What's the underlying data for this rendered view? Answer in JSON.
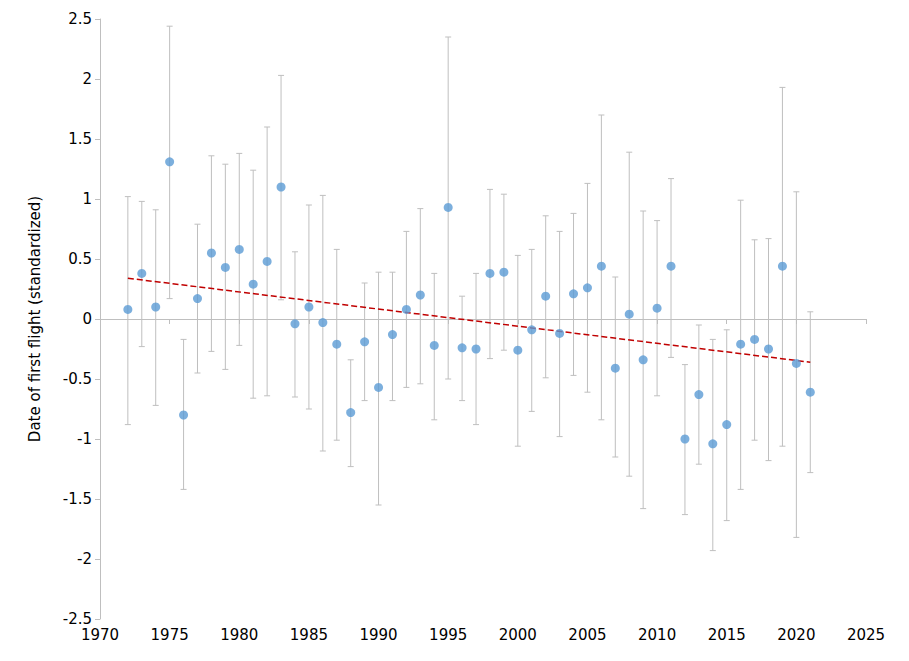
{
  "chart_data": {
    "type": "scatter",
    "y_label": "Date of first flight (standardized)",
    "xlim": [
      1970,
      2025
    ],
    "xticks": [
      1970,
      1975,
      1980,
      1985,
      1990,
      1995,
      2000,
      2005,
      2010,
      2015,
      2020,
      2025
    ],
    "ylim": [
      -2.5,
      2.5
    ],
    "yticks": [
      -2.5,
      -2,
      -1.5,
      -1,
      -0.5,
      0,
      0.5,
      1,
      1.5,
      2,
      2.5
    ],
    "grid": false,
    "series": [
      {
        "type": "scatter",
        "color": "#5b9bd5",
        "marker": "circle",
        "x": [
          1972,
          1973,
          1974,
          1975,
          1976,
          1977,
          1978,
          1979,
          1980,
          1981,
          1982,
          1983,
          1984,
          1985,
          1986,
          1987,
          1988,
          1989,
          1990,
          1991,
          1992,
          1993,
          1994,
          1995,
          1996,
          1997,
          1998,
          1999,
          2000,
          2001,
          2002,
          2003,
          2004,
          2005,
          2006,
          2007,
          2008,
          2009,
          2010,
          2011,
          2012,
          2013,
          2014,
          2015,
          2016,
          2017,
          2018,
          2019,
          2020,
          2021
        ],
        "values": [
          0.08,
          0.38,
          0.1,
          1.31,
          -0.8,
          0.17,
          0.55,
          0.43,
          0.58,
          0.29,
          0.48,
          1.1,
          -0.04,
          0.1,
          -0.03,
          -0.21,
          -0.78,
          -0.19,
          -0.57,
          -0.13,
          0.08,
          0.2,
          -0.22,
          0.93,
          -0.24,
          -0.25,
          0.38,
          0.39,
          -0.26,
          -0.09,
          0.19,
          -0.12,
          0.21,
          0.26,
          0.44,
          -0.41,
          0.04,
          -0.34,
          0.09,
          0.44,
          -1.0,
          -0.63,
          -1.04,
          -0.88,
          -0.21,
          -0.17,
          -0.25,
          0.44,
          -0.37,
          -0.61
        ],
        "error_low": [
          -0.88,
          -0.23,
          -0.72,
          0.17,
          -1.42,
          -0.45,
          -0.27,
          -0.42,
          -0.22,
          -0.66,
          -0.64,
          0.16,
          -0.65,
          -0.75,
          -1.1,
          -1.01,
          -1.23,
          -0.68,
          -1.55,
          -0.68,
          -0.57,
          -0.54,
          -0.84,
          -0.5,
          -0.68,
          -0.88,
          -0.33,
          -0.26,
          -1.06,
          -0.77,
          -0.49,
          -0.98,
          -0.47,
          -0.61,
          -0.84,
          -1.15,
          -1.31,
          -1.58,
          -0.64,
          -0.32,
          -1.63,
          -1.21,
          -1.93,
          -1.68,
          -1.42,
          -1.01,
          -1.18,
          -1.06,
          -1.82,
          -1.28
        ],
        "error_high": [
          1.02,
          0.98,
          0.91,
          2.44,
          -0.17,
          0.79,
          1.36,
          1.29,
          1.38,
          1.24,
          1.6,
          2.03,
          0.56,
          0.95,
          1.03,
          0.58,
          -0.34,
          0.3,
          0.39,
          0.39,
          0.73,
          0.92,
          0.38,
          2.35,
          0.19,
          0.38,
          1.08,
          1.04,
          0.53,
          0.58,
          0.86,
          0.73,
          0.88,
          1.13,
          1.7,
          0.35,
          1.39,
          0.9,
          0.82,
          1.17,
          -0.38,
          -0.05,
          -0.17,
          -0.09,
          0.99,
          0.66,
          0.67,
          1.93,
          1.06,
          0.06
        ]
      },
      {
        "type": "line",
        "color": "#c00000",
        "line_style": "dashed",
        "x": [
          1972,
          2021
        ],
        "values": [
          0.34,
          -0.36
        ]
      }
    ]
  }
}
